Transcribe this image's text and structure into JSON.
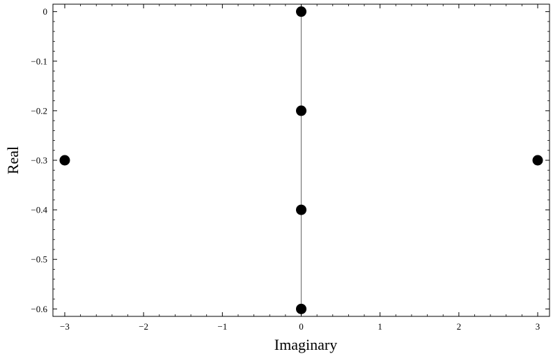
{
  "chart_data": {
    "type": "scatter",
    "xlabel": "Imaginary",
    "ylabel": "Real",
    "xlim": [
      -3.15,
      3.15
    ],
    "ylim": [
      -0.615,
      0.015
    ],
    "xticks": [
      -3,
      -2,
      -1,
      0,
      1,
      2,
      3
    ],
    "yticks": [
      0,
      -0.1,
      -0.2,
      -0.3,
      -0.4,
      -0.5,
      -0.6
    ],
    "xtick_labels": [
      "−3",
      "−2",
      "−1",
      "0",
      "1",
      "2",
      "3"
    ],
    "ytick_labels": [
      "0",
      "−0.1",
      "−0.2",
      "−0.3",
      "−0.4",
      "−0.5",
      "−0.6"
    ],
    "reference_line_x": 0,
    "grid": false,
    "marker_color": "#000000",
    "points": [
      {
        "x": 0,
        "y": 0
      },
      {
        "x": 0,
        "y": -0.2
      },
      {
        "x": -3,
        "y": -0.3
      },
      {
        "x": 3,
        "y": -0.3
      },
      {
        "x": 0,
        "y": -0.4
      },
      {
        "x": 0,
        "y": -0.6
      }
    ]
  }
}
